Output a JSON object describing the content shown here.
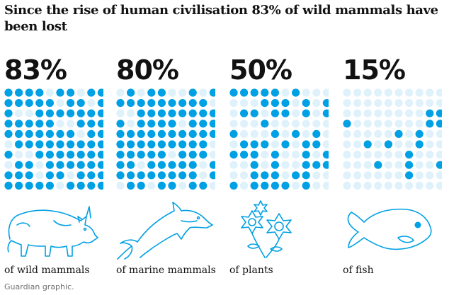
{
  "title": "Since the rise of human civilisation 83% of wild mammals have been lost",
  "source": "Guardian graphic.",
  "colors": {
    "lost": "#00a0e4",
    "remaining": "#dff1fb",
    "text": "#121212",
    "source": "#707070"
  },
  "chart_data": [
    {
      "type": "waffle",
      "value_percent": 83,
      "value_label": "83%",
      "label": "of wild mammals",
      "icon": "rhino-icon",
      "grid": [
        10,
        10
      ]
    },
    {
      "type": "waffle",
      "value_percent": 80,
      "value_label": "80%",
      "label": "of marine mammals",
      "icon": "dolphin-icon",
      "grid": [
        10,
        10
      ]
    },
    {
      "type": "waffle",
      "value_percent": 50,
      "value_label": "50%",
      "label": "of plants",
      "icon": "flower-icon",
      "grid": [
        10,
        10
      ]
    },
    {
      "type": "waffle",
      "value_percent": 15,
      "value_label": "15%",
      "label": "of fish",
      "icon": "fish-icon",
      "grid": [
        10,
        10
      ]
    }
  ]
}
